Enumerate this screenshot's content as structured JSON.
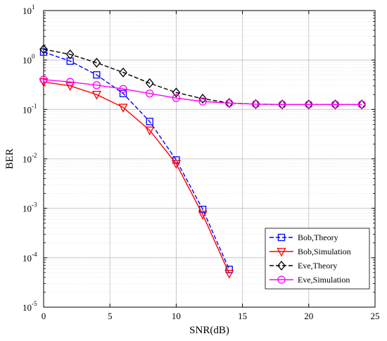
{
  "chart_data": {
    "type": "line",
    "xlabel": "SNR(dB)",
    "ylabel": "BER",
    "xlim": [
      0,
      25
    ],
    "ylim": [
      1e-05,
      10
    ],
    "yscale": "log",
    "xticks": [
      0,
      5,
      10,
      15,
      20,
      25
    ],
    "yticks": [
      {
        "value": 10,
        "base": "10",
        "exp": "1"
      },
      {
        "value": 1,
        "base": "10",
        "exp": "0"
      },
      {
        "value": 0.1,
        "base": "10",
        "exp": "-1"
      },
      {
        "value": 0.01,
        "base": "10",
        "exp": "-2"
      },
      {
        "value": 0.001,
        "base": "10",
        "exp": "-3"
      },
      {
        "value": 0.0001,
        "base": "10",
        "exp": "-4"
      },
      {
        "value": 1e-05,
        "base": "10",
        "exp": "-5"
      }
    ],
    "grid": true,
    "legend_position": "bottom-right",
    "series": [
      {
        "name": "Bob,Theory",
        "color": "#0000ff",
        "dash": "dashed",
        "marker": "square",
        "x": [
          0,
          2,
          4,
          6,
          8,
          10,
          12,
          14
        ],
        "y": [
          1.45,
          0.95,
          0.5,
          0.21,
          0.057,
          0.0095,
          0.00095,
          5.8e-05
        ]
      },
      {
        "name": "Bob,Simulation",
        "color": "#ff0000",
        "dash": "solid",
        "marker": "triangle-down",
        "x": [
          0,
          2,
          4,
          6,
          8,
          10,
          12,
          14
        ],
        "y": [
          0.36,
          0.3,
          0.2,
          0.11,
          0.038,
          0.008,
          0.00075,
          4.8e-05
        ]
      },
      {
        "name": "Eve,Theory",
        "color": "#000000",
        "dash": "dashed",
        "marker": "diamond",
        "x": [
          0,
          2,
          4,
          6,
          8,
          10,
          12,
          14,
          16,
          18,
          20,
          22,
          24
        ],
        "y": [
          1.65,
          1.3,
          0.88,
          0.56,
          0.34,
          0.22,
          0.165,
          0.135,
          0.128,
          0.126,
          0.126,
          0.126,
          0.126
        ]
      },
      {
        "name": "Eve,Simulation",
        "color": "#ff00ff",
        "dash": "solid",
        "marker": "circle",
        "x": [
          0,
          2,
          4,
          6,
          8,
          10,
          12,
          14,
          16,
          18,
          20,
          22,
          24
        ],
        "y": [
          0.4,
          0.36,
          0.31,
          0.26,
          0.21,
          0.17,
          0.145,
          0.134,
          0.128,
          0.126,
          0.126,
          0.126,
          0.126
        ]
      }
    ]
  }
}
